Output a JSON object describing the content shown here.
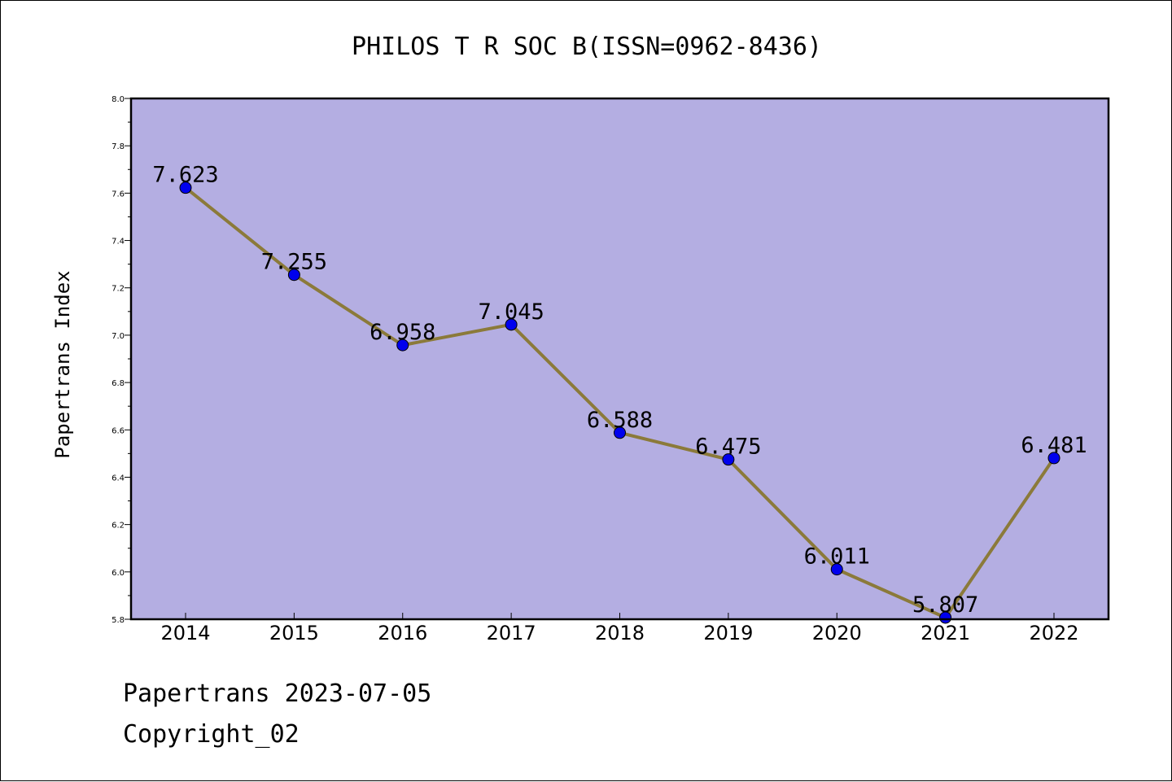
{
  "chart_data": {
    "type": "line",
    "title": "PHILOS T R SOC B(ISSN=0962-8436)",
    "xlabel": "",
    "ylabel": "Papertrans Index",
    "categories": [
      "2014",
      "2015",
      "2016",
      "2017",
      "2018",
      "2019",
      "2020",
      "2021",
      "2022"
    ],
    "series": [
      {
        "values": [
          7.623,
          7.255,
          6.958,
          7.045,
          6.588,
          6.475,
          6.011,
          5.807,
          6.481
        ],
        "labels": [
          "7.623",
          "7.255",
          "6.958",
          "7.045",
          "6.588",
          "6.475",
          "6.011",
          "5.807",
          "6.481"
        ]
      }
    ],
    "ylim": [
      5.8,
      8.0
    ],
    "yticks": [
      "5.8",
      "6.0",
      "6.2",
      "6.4",
      "6.6",
      "6.8",
      "7.0",
      "7.2",
      "7.4",
      "7.6",
      "7.8",
      "8.0"
    ],
    "grid": false,
    "colors": {
      "plot_background": "#b4aee2",
      "line": "#8b7a3a",
      "marker": "#0000ee"
    }
  },
  "footer": {
    "date_line": "Papertrans 2023-07-05",
    "copyright": "Copyright_02"
  }
}
